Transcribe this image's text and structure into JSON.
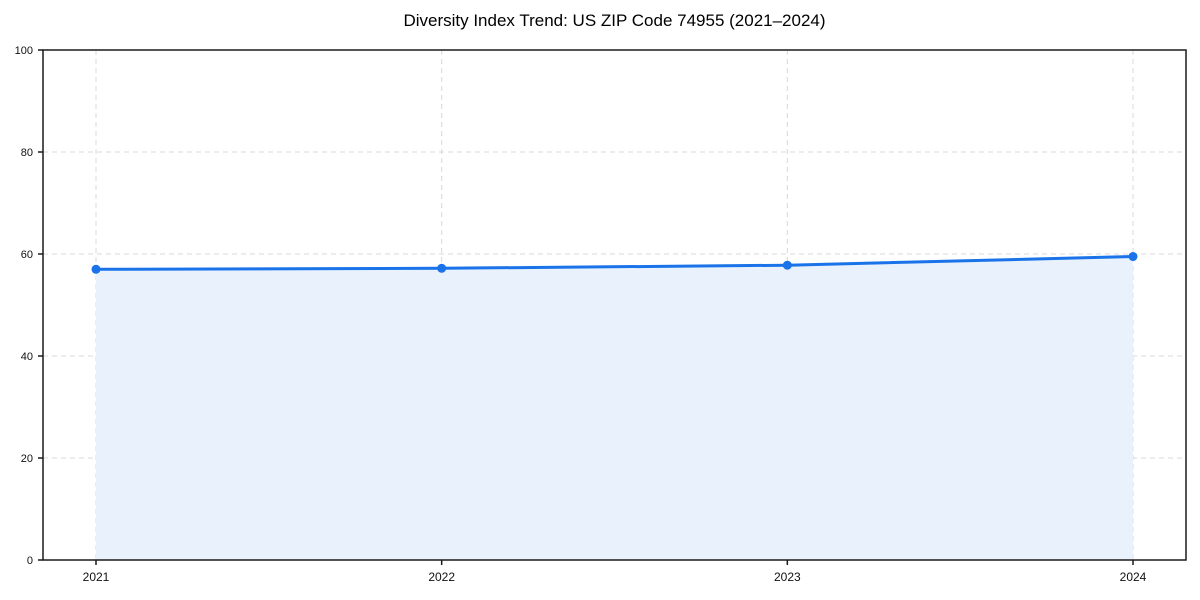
{
  "page": {
    "background": "#ffffff"
  },
  "chart_data": {
    "type": "area",
    "title": "Diversity Index Trend: US ZIP Code 74955 (2021–2024)",
    "x": [
      "2021",
      "2022",
      "2023",
      "2024"
    ],
    "series": [
      {
        "name": "Diversity Index",
        "values": [
          57.0,
          57.2,
          57.8,
          59.5
        ]
      }
    ],
    "xlabel": "",
    "ylabel": "",
    "ylim": [
      0,
      100
    ],
    "yticks": [
      0,
      20,
      40,
      60,
      80,
      100
    ],
    "grid": true,
    "grid_style": "dashed",
    "legend_position": "none",
    "marker": "circle",
    "colors": {
      "line": "#1a73e8",
      "fill": "#e8f1fc",
      "grid": "#d9d9d9",
      "axis": "#1a1a1a",
      "tick_text": "#111111"
    }
  }
}
